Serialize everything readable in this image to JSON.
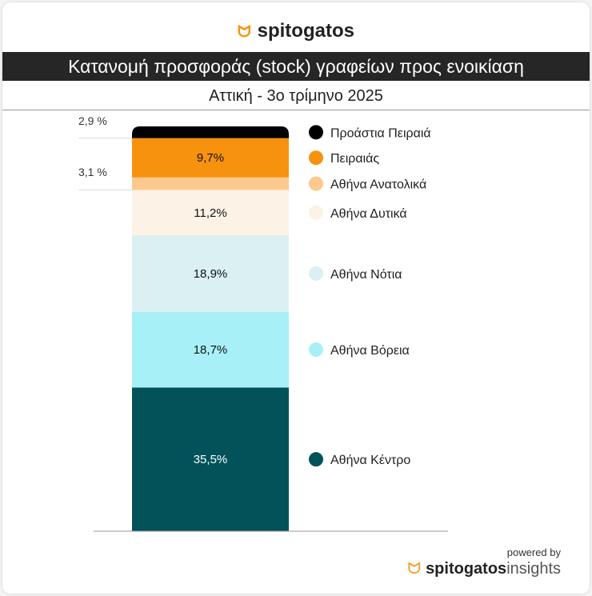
{
  "brand": {
    "name": "spitogatos",
    "icon": "cat-icon"
  },
  "header": {
    "title": "Κατανομή προσφοράς (stock) γραφείων  προς ενοικίαση",
    "subtitle": "Αττική - 3ο τρίμηνο 2025"
  },
  "footer": {
    "powered_by": "powered by",
    "brand": "spitogatos",
    "suffix": "insights"
  },
  "chart_data": {
    "type": "bar",
    "stacked": true,
    "title": "Κατανομή προσφοράς (stock) γραφείων  προς ενοικίαση",
    "subtitle": "Αττική - 3ο τρίμηνο 2025",
    "series": [
      {
        "name": "Αθήνα Κέντρο",
        "value": 35.5,
        "label": "35,5%",
        "color": "#02525a",
        "label_color": "#ffffff"
      },
      {
        "name": "Αθήνα Βόρεια",
        "value": 18.7,
        "label": "18,7%",
        "color": "#a8f0f8",
        "label_color": "#111111"
      },
      {
        "name": "Αθήνα Νότια",
        "value": 18.9,
        "label": "18,9%",
        "color": "#daf0f3",
        "label_color": "#111111"
      },
      {
        "name": "Αθήνα Δυτικά",
        "value": 11.2,
        "label": "11,2%",
        "color": "#fdf2e6",
        "label_color": "#111111"
      },
      {
        "name": "Αθήνα Ανατολικά",
        "value": 3.1,
        "label": "3,1 %",
        "color": "#fdc98f",
        "label_color": "#333333",
        "outside": true
      },
      {
        "name": "Πειραιάς",
        "value": 9.7,
        "label": "9,7%",
        "color": "#f7920f",
        "label_color": "#111111"
      },
      {
        "name": "Προάστια Πειραιά",
        "value": 2.9,
        "label": "2,9 %",
        "color": "#000000",
        "label_color": "#333333",
        "outside": true
      }
    ],
    "legend": "right",
    "ylim": [
      0,
      100
    ]
  }
}
